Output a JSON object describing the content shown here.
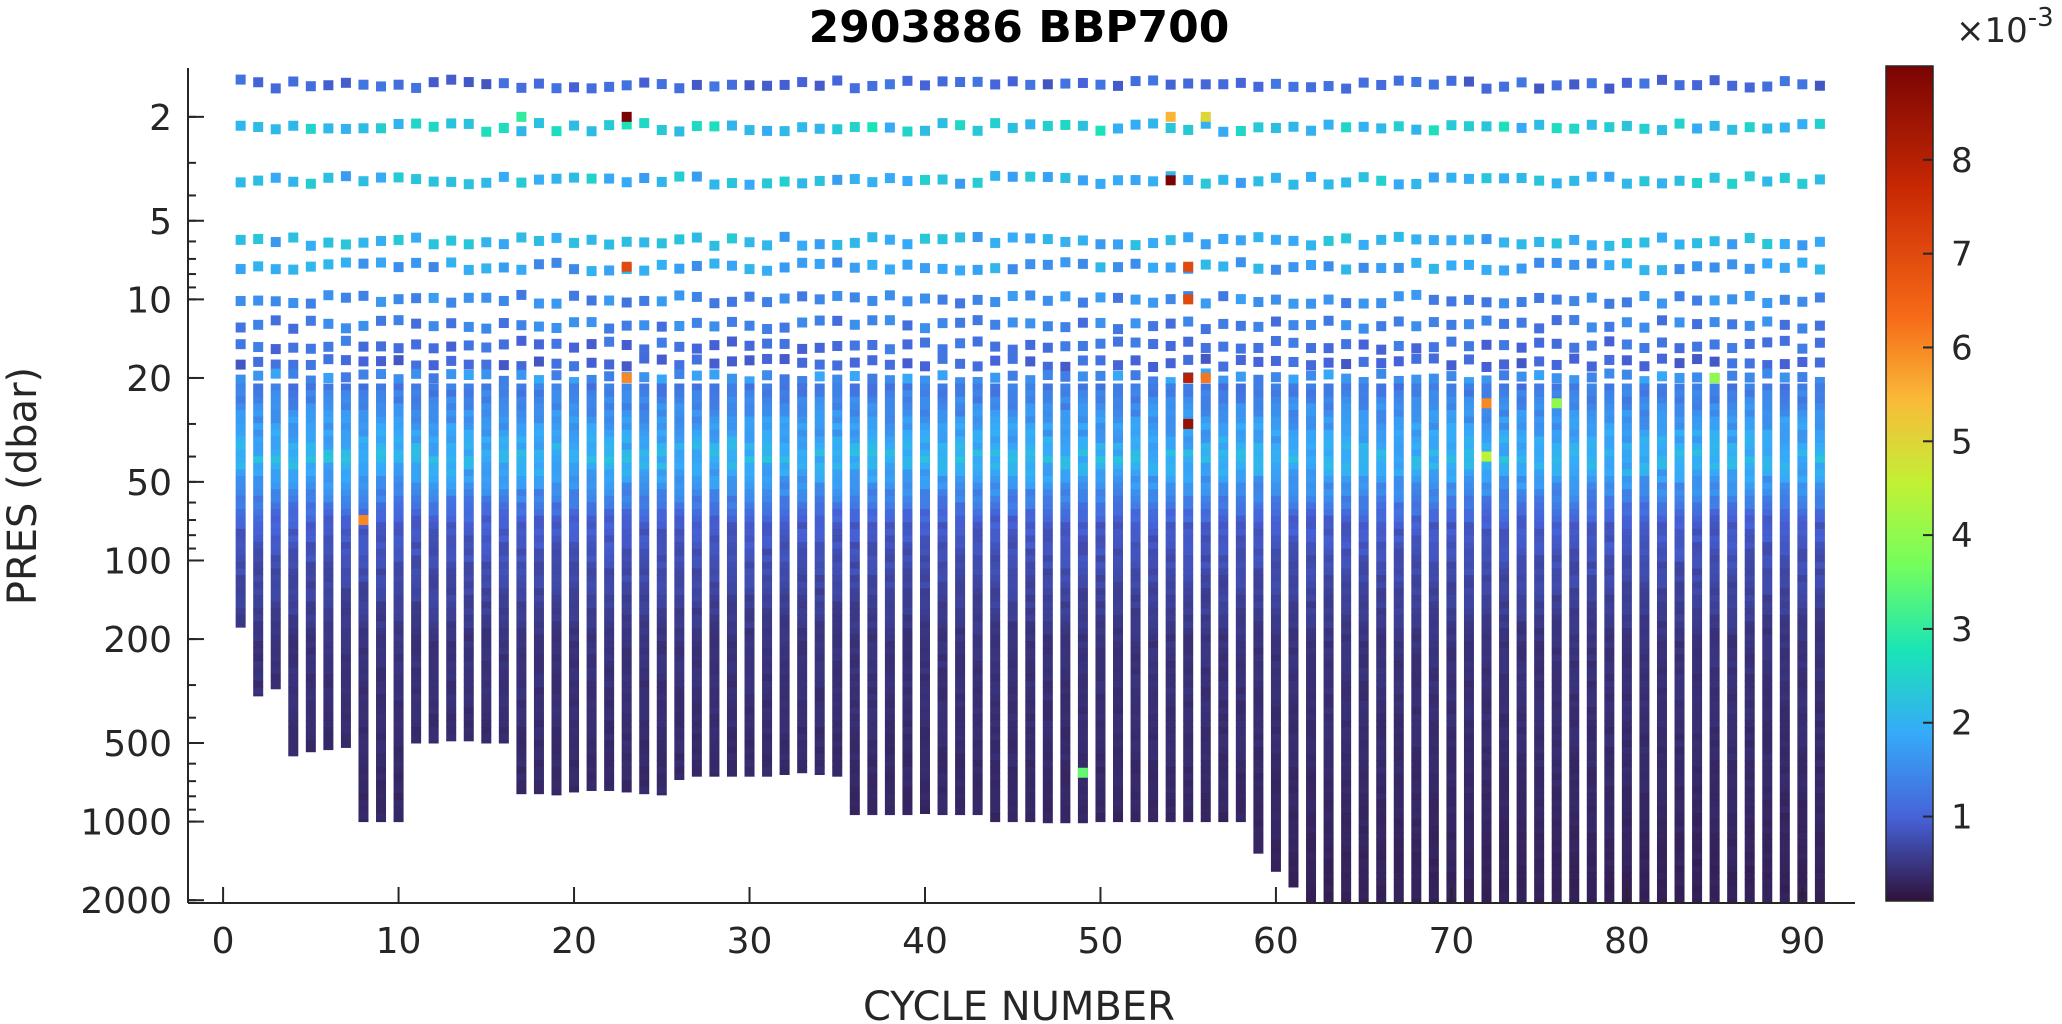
{
  "chart_data": {
    "type": "scatter",
    "title": "2903886 BBP700",
    "xlabel": "CYCLE NUMBER",
    "ylabel": "PRES (dbar)",
    "xlim": [
      -2,
      93
    ],
    "ylim": [
      1.3,
      2050
    ],
    "y_scale": "log",
    "y_reversed": true,
    "xticks": [
      0,
      10,
      20,
      30,
      40,
      50,
      60,
      70,
      80,
      90
    ],
    "xtick_labels": [
      "0",
      "10",
      "20",
      "30",
      "40",
      "50",
      "60",
      "70",
      "80",
      "90"
    ],
    "yticks": [
      2,
      5,
      10,
      20,
      50,
      100,
      200,
      500,
      1000,
      2000
    ],
    "ytick_labels": [
      "2",
      "5",
      "10",
      "20",
      "50",
      "100",
      "200",
      "500",
      "1000",
      "2000"
    ],
    "colorbar": {
      "colormap": "turbo",
      "range": [
        0.0001,
        0.009
      ],
      "ticks": [
        1,
        2,
        3,
        4,
        5,
        6,
        7,
        8
      ],
      "tick_labels": [
        "1",
        "2",
        "3",
        "4",
        "5",
        "6",
        "7",
        "8"
      ],
      "exponent_label": "×10",
      "exponent_power": "-3"
    },
    "profiles": {
      "cycles_start": 1,
      "cycles_end": 91,
      "surface_pressure_dbar": [
        1.5,
        2.2,
        3.5,
        6.0,
        7.5,
        10.0,
        12.5,
        15.0,
        17.5,
        20.0
      ],
      "max_pressure_dbar": {
        "1": 180,
        "2": 330,
        "3": 310,
        "4": 560,
        "5": 540,
        "6": 530,
        "7": 520,
        "8": 1000,
        "9": 1000,
        "10": 1000,
        "11": 500,
        "12": 500,
        "13": 490,
        "14": 490,
        "15": 500,
        "16": 500,
        "17": 780,
        "18": 780,
        "19": 790,
        "20": 770,
        "21": 760,
        "22": 760,
        "23": 770,
        "24": 780,
        "25": 790,
        "26": 690,
        "27": 670,
        "28": 670,
        "29": 670,
        "30": 670,
        "31": 670,
        "32": 660,
        "33": 650,
        "34": 660,
        "35": 670,
        "36": 940,
        "37": 940,
        "38": 940,
        "39": 940,
        "40": 930,
        "41": 940,
        "42": 940,
        "43": 940,
        "44": 1000,
        "45": 1000,
        "46": 1000,
        "47": 1010,
        "48": 1010,
        "49": 1010,
        "50": 1000,
        "51": 1000,
        "52": 1000,
        "53": 1000,
        "54": 1000,
        "55": 1000,
        "56": 1000,
        "57": 1000,
        "58": 1000,
        "59": 1320,
        "60": 1550,
        "61": 1780,
        "62": 2050
      },
      "default_max_pressure_dbar": 2050,
      "surface_bbp700_e3": [
        1.0,
        2.2,
        2.0,
        1.9,
        1.7,
        1.4,
        1.3,
        1.1,
        1.0,
        1.5
      ],
      "deep_bbp700_e3": 0.25,
      "notable_high_values": [
        {
          "cycle": 23,
          "pres": 2.0,
          "bbp700_e3": 9.0
        },
        {
          "cycle": 23,
          "pres": 7.5,
          "bbp700_e3": 7.0
        },
        {
          "cycle": 23,
          "pres": 20.0,
          "bbp700_e3": 6.0
        },
        {
          "cycle": 54,
          "pres": 3.5,
          "bbp700_e3": 9.0
        },
        {
          "cycle": 55,
          "pres": 10.0,
          "bbp700_e3": 7.0
        },
        {
          "cycle": 55,
          "pres": 20.0,
          "bbp700_e3": 8.0
        },
        {
          "cycle": 55,
          "pres": 30.0,
          "bbp700_e3": 8.5
        },
        {
          "cycle": 55,
          "pres": 7.5,
          "bbp700_e3": 7.0
        },
        {
          "cycle": 56,
          "pres": 20.0,
          "bbp700_e3": 6.2
        },
        {
          "cycle": 54,
          "pres": 2.0,
          "bbp700_e3": 5.5
        },
        {
          "cycle": 56,
          "pres": 2.0,
          "bbp700_e3": 5.0
        },
        {
          "cycle": 17,
          "pres": 2.0,
          "bbp700_e3": 3.0
        },
        {
          "cycle": 72,
          "pres": 25.0,
          "bbp700_e3": 6.0
        },
        {
          "cycle": 72,
          "pres": 40.0,
          "bbp700_e3": 4.5
        },
        {
          "cycle": 8,
          "pres": 70.0,
          "bbp700_e3": 6.0
        },
        {
          "cycle": 76,
          "pres": 25.0,
          "bbp700_e3": 4.0
        },
        {
          "cycle": 85,
          "pres": 20.0,
          "bbp700_e3": 4.0
        },
        {
          "cycle": 49,
          "pres": 650.0,
          "bbp700_e3": 3.5
        }
      ]
    }
  }
}
